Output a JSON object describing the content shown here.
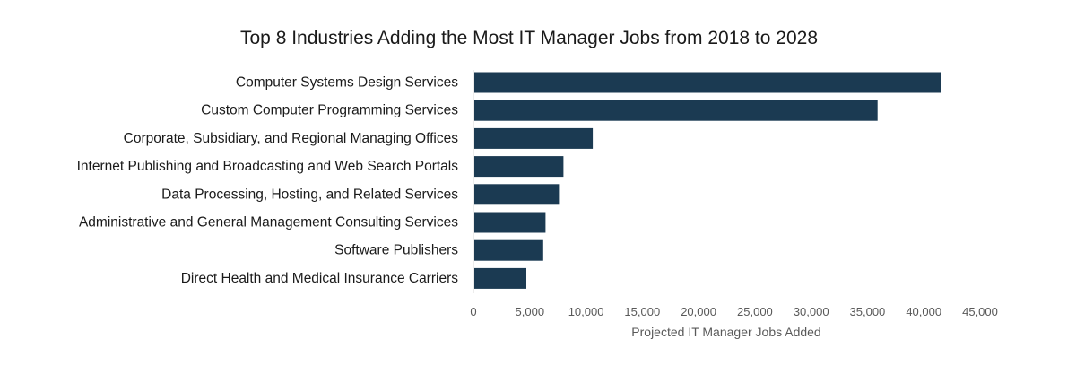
{
  "chart_data": {
    "type": "bar",
    "orientation": "horizontal",
    "title": "Top 8 Industries Adding the Most IT Manager Jobs from 2018 to 2028",
    "xlabel": "Projected IT Manager Jobs Added",
    "ylabel": "",
    "xlim": [
      0,
      45000
    ],
    "ticks": [
      "0",
      "5,000",
      "10,000",
      "15,000",
      "20,000",
      "25,000",
      "30,000",
      "35,000",
      "40,000",
      "45,000"
    ],
    "tick_values": [
      0,
      5000,
      10000,
      15000,
      20000,
      25000,
      30000,
      35000,
      40000,
      45000
    ],
    "grid": false,
    "legend": "none",
    "bar_color": "#1b3a52",
    "categories": [
      "Computer Systems Design Services",
      "Custom Computer Programming Services",
      "Corporate, Subsidiary, and Regional Managing Offices",
      "Internet Publishing and Broadcasting and Web Search Portals",
      "Data Processing, Hosting, and Related Services",
      "Administrative and General Management Consulting Services",
      "Software Publishers",
      "Direct Health and Medical Insurance Carriers"
    ],
    "values": [
      41500,
      35900,
      10600,
      8000,
      7600,
      6400,
      6200,
      4700
    ]
  }
}
